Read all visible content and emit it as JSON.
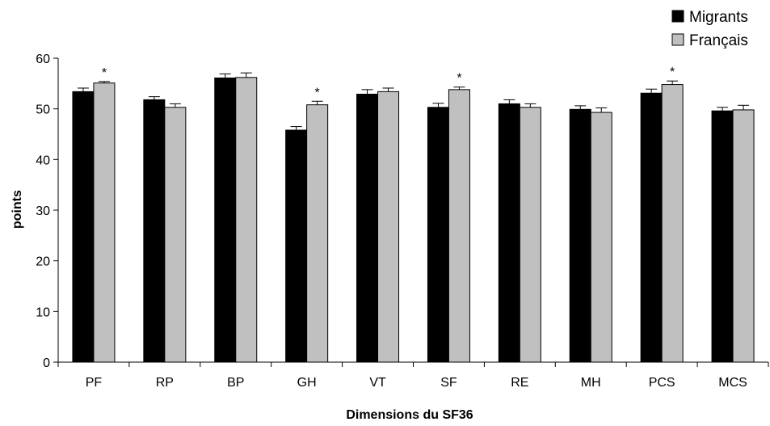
{
  "chart_data": {
    "type": "bar",
    "xlabel": "Dimensions du SF36",
    "ylabel": "points",
    "ylim": [
      0,
      60
    ],
    "yticks": [
      0,
      10,
      20,
      30,
      40,
      50,
      60
    ],
    "grid": false,
    "legend_position": "top-right",
    "categories": [
      "PF",
      "RP",
      "BP",
      "GH",
      "VT",
      "SF",
      "RE",
      "MH",
      "PCS",
      "MCS"
    ],
    "series": [
      {
        "name": "Migrants",
        "color": "#000000",
        "values": [
          53.4,
          51.8,
          56.1,
          45.8,
          52.9,
          50.3,
          51.0,
          49.9,
          53.1,
          49.6
        ],
        "errors": [
          0.7,
          0.6,
          0.8,
          0.7,
          0.9,
          0.8,
          0.8,
          0.7,
          0.8,
          0.7
        ]
      },
      {
        "name": "Français",
        "color": "#c0c0c0",
        "values": [
          55.1,
          50.3,
          56.2,
          50.8,
          53.4,
          53.8,
          50.3,
          49.3,
          54.8,
          49.8
        ],
        "errors": [
          0.3,
          0.7,
          0.9,
          0.7,
          0.7,
          0.5,
          0.7,
          0.9,
          0.7,
          0.9
        ]
      }
    ],
    "annotations": [
      {
        "category": "PF",
        "text": "*"
      },
      {
        "category": "GH",
        "text": "*"
      },
      {
        "category": "SF",
        "text": "*"
      },
      {
        "category": "PCS",
        "text": "*"
      }
    ]
  }
}
